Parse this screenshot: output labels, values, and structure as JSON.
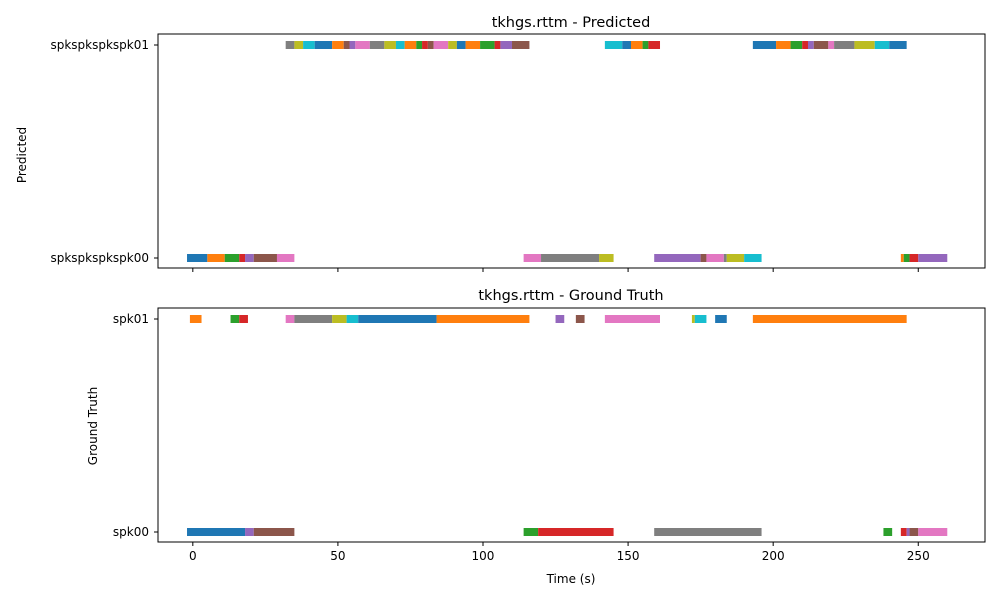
{
  "chart_data": [
    {
      "type": "timeline",
      "title": "tkhgs.rttm - Predicted",
      "ylabel": "Predicted",
      "xlabel": "",
      "xlim": [
        -12,
        273
      ],
      "xticks": [
        0,
        50,
        100,
        150,
        200,
        250
      ],
      "xtick_labels_visible": false,
      "rows": [
        "spkspkspkspk00",
        "spkspkspkspk01"
      ],
      "segments": [
        {
          "row": 0,
          "start": -2,
          "end": 5,
          "color": "#1f77b4"
        },
        {
          "row": 0,
          "start": 5,
          "end": 11,
          "color": "#ff7f0e"
        },
        {
          "row": 0,
          "start": 11,
          "end": 16,
          "color": "#2ca02c"
        },
        {
          "row": 0,
          "start": 16,
          "end": 18,
          "color": "#d62728"
        },
        {
          "row": 0,
          "start": 18,
          "end": 21,
          "color": "#9467bd"
        },
        {
          "row": 0,
          "start": 21,
          "end": 29,
          "color": "#8c564b"
        },
        {
          "row": 0,
          "start": 29,
          "end": 35,
          "color": "#e377c2"
        },
        {
          "row": 0,
          "start": 114,
          "end": 120,
          "color": "#e377c2"
        },
        {
          "row": 0,
          "start": 120,
          "end": 140,
          "color": "#7f7f7f"
        },
        {
          "row": 0,
          "start": 140,
          "end": 145,
          "color": "#bcbd22"
        },
        {
          "row": 0,
          "start": 159,
          "end": 175,
          "color": "#9467bd"
        },
        {
          "row": 0,
          "start": 175,
          "end": 177,
          "color": "#8c564b"
        },
        {
          "row": 0,
          "start": 177,
          "end": 183,
          "color": "#e377c2"
        },
        {
          "row": 0,
          "start": 183,
          "end": 184,
          "color": "#7f7f7f"
        },
        {
          "row": 0,
          "start": 184,
          "end": 190,
          "color": "#bcbd22"
        },
        {
          "row": 0,
          "start": 190,
          "end": 196,
          "color": "#17becf"
        },
        {
          "row": 0,
          "start": 244,
          "end": 245,
          "color": "#ff7f0e"
        },
        {
          "row": 0,
          "start": 245,
          "end": 247,
          "color": "#2ca02c"
        },
        {
          "row": 0,
          "start": 247,
          "end": 250,
          "color": "#d62728"
        },
        {
          "row": 0,
          "start": 250,
          "end": 260,
          "color": "#9467bd"
        },
        {
          "row": 1,
          "start": 32,
          "end": 35,
          "color": "#7f7f7f"
        },
        {
          "row": 1,
          "start": 35,
          "end": 38,
          "color": "#bcbd22"
        },
        {
          "row": 1,
          "start": 38,
          "end": 42,
          "color": "#17becf"
        },
        {
          "row": 1,
          "start": 42,
          "end": 48,
          "color": "#1f77b4"
        },
        {
          "row": 1,
          "start": 48,
          "end": 52,
          "color": "#ff7f0e"
        },
        {
          "row": 1,
          "start": 52,
          "end": 54,
          "color": "#8c564b"
        },
        {
          "row": 1,
          "start": 54,
          "end": 56,
          "color": "#9467bd"
        },
        {
          "row": 1,
          "start": 56,
          "end": 61,
          "color": "#e377c2"
        },
        {
          "row": 1,
          "start": 61,
          "end": 66,
          "color": "#7f7f7f"
        },
        {
          "row": 1,
          "start": 66,
          "end": 70,
          "color": "#bcbd22"
        },
        {
          "row": 1,
          "start": 70,
          "end": 73,
          "color": "#17becf"
        },
        {
          "row": 1,
          "start": 73,
          "end": 77,
          "color": "#ff7f0e"
        },
        {
          "row": 1,
          "start": 77,
          "end": 79,
          "color": "#2ca02c"
        },
        {
          "row": 1,
          "start": 79,
          "end": 81,
          "color": "#d62728"
        },
        {
          "row": 1,
          "start": 81,
          "end": 83,
          "color": "#8c564b"
        },
        {
          "row": 1,
          "start": 83,
          "end": 88,
          "color": "#e377c2"
        },
        {
          "row": 1,
          "start": 88,
          "end": 91,
          "color": "#bcbd22"
        },
        {
          "row": 1,
          "start": 91,
          "end": 94,
          "color": "#1f77b4"
        },
        {
          "row": 1,
          "start": 94,
          "end": 99,
          "color": "#ff7f0e"
        },
        {
          "row": 1,
          "start": 99,
          "end": 104,
          "color": "#2ca02c"
        },
        {
          "row": 1,
          "start": 104,
          "end": 106,
          "color": "#d62728"
        },
        {
          "row": 1,
          "start": 106,
          "end": 110,
          "color": "#9467bd"
        },
        {
          "row": 1,
          "start": 110,
          "end": 116,
          "color": "#8c564b"
        },
        {
          "row": 1,
          "start": 142,
          "end": 148,
          "color": "#17becf"
        },
        {
          "row": 1,
          "start": 148,
          "end": 151,
          "color": "#1f77b4"
        },
        {
          "row": 1,
          "start": 151,
          "end": 155,
          "color": "#ff7f0e"
        },
        {
          "row": 1,
          "start": 155,
          "end": 157,
          "color": "#2ca02c"
        },
        {
          "row": 1,
          "start": 157,
          "end": 161,
          "color": "#d62728"
        },
        {
          "row": 1,
          "start": 193,
          "end": 201,
          "color": "#1f77b4"
        },
        {
          "row": 1,
          "start": 201,
          "end": 206,
          "color": "#ff7f0e"
        },
        {
          "row": 1,
          "start": 206,
          "end": 210,
          "color": "#2ca02c"
        },
        {
          "row": 1,
          "start": 210,
          "end": 212,
          "color": "#d62728"
        },
        {
          "row": 1,
          "start": 212,
          "end": 214,
          "color": "#9467bd"
        },
        {
          "row": 1,
          "start": 214,
          "end": 219,
          "color": "#8c564b"
        },
        {
          "row": 1,
          "start": 219,
          "end": 221,
          "color": "#e377c2"
        },
        {
          "row": 1,
          "start": 221,
          "end": 228,
          "color": "#7f7f7f"
        },
        {
          "row": 1,
          "start": 228,
          "end": 235,
          "color": "#bcbd22"
        },
        {
          "row": 1,
          "start": 235,
          "end": 240,
          "color": "#17becf"
        },
        {
          "row": 1,
          "start": 240,
          "end": 246,
          "color": "#1f77b4"
        }
      ]
    },
    {
      "type": "timeline",
      "title": "tkhgs.rttm - Ground Truth",
      "ylabel": "Ground Truth",
      "xlabel": "Time (s)",
      "xlim": [
        -12,
        273
      ],
      "xticks": [
        0,
        50,
        100,
        150,
        200,
        250
      ],
      "xtick_labels_visible": true,
      "rows": [
        "spk00",
        "spk01"
      ],
      "segments": [
        {
          "row": 0,
          "start": -2,
          "end": 18,
          "color": "#1f77b4"
        },
        {
          "row": 0,
          "start": 18,
          "end": 21,
          "color": "#9467bd"
        },
        {
          "row": 0,
          "start": 21,
          "end": 35,
          "color": "#8c564b"
        },
        {
          "row": 0,
          "start": 114,
          "end": 119,
          "color": "#2ca02c"
        },
        {
          "row": 0,
          "start": 119,
          "end": 145,
          "color": "#d62728"
        },
        {
          "row": 0,
          "start": 159,
          "end": 196,
          "color": "#7f7f7f"
        },
        {
          "row": 0,
          "start": 238,
          "end": 241,
          "color": "#2ca02c"
        },
        {
          "row": 0,
          "start": 244,
          "end": 246,
          "color": "#d62728"
        },
        {
          "row": 0,
          "start": 246,
          "end": 247,
          "color": "#9467bd"
        },
        {
          "row": 0,
          "start": 247,
          "end": 250,
          "color": "#8c564b"
        },
        {
          "row": 0,
          "start": 250,
          "end": 260,
          "color": "#e377c2"
        },
        {
          "row": 1,
          "start": -1,
          "end": 3,
          "color": "#ff7f0e"
        },
        {
          "row": 1,
          "start": 13,
          "end": 16,
          "color": "#2ca02c"
        },
        {
          "row": 1,
          "start": 16,
          "end": 19,
          "color": "#d62728"
        },
        {
          "row": 1,
          "start": 32,
          "end": 35,
          "color": "#e377c2"
        },
        {
          "row": 1,
          "start": 35,
          "end": 48,
          "color": "#7f7f7f"
        },
        {
          "row": 1,
          "start": 48,
          "end": 53,
          "color": "#bcbd22"
        },
        {
          "row": 1,
          "start": 53,
          "end": 57,
          "color": "#17becf"
        },
        {
          "row": 1,
          "start": 57,
          "end": 84,
          "color": "#1f77b4"
        },
        {
          "row": 1,
          "start": 84,
          "end": 116,
          "color": "#ff7f0e"
        },
        {
          "row": 1,
          "start": 125,
          "end": 128,
          "color": "#9467bd"
        },
        {
          "row": 1,
          "start": 132,
          "end": 135,
          "color": "#8c564b"
        },
        {
          "row": 1,
          "start": 142,
          "end": 161,
          "color": "#e377c2"
        },
        {
          "row": 1,
          "start": 172,
          "end": 173,
          "color": "#bcbd22"
        },
        {
          "row": 1,
          "start": 173,
          "end": 177,
          "color": "#17becf"
        },
        {
          "row": 1,
          "start": 180,
          "end": 184,
          "color": "#1f77b4"
        },
        {
          "row": 1,
          "start": 193,
          "end": 246,
          "color": "#ff7f0e"
        }
      ]
    }
  ]
}
